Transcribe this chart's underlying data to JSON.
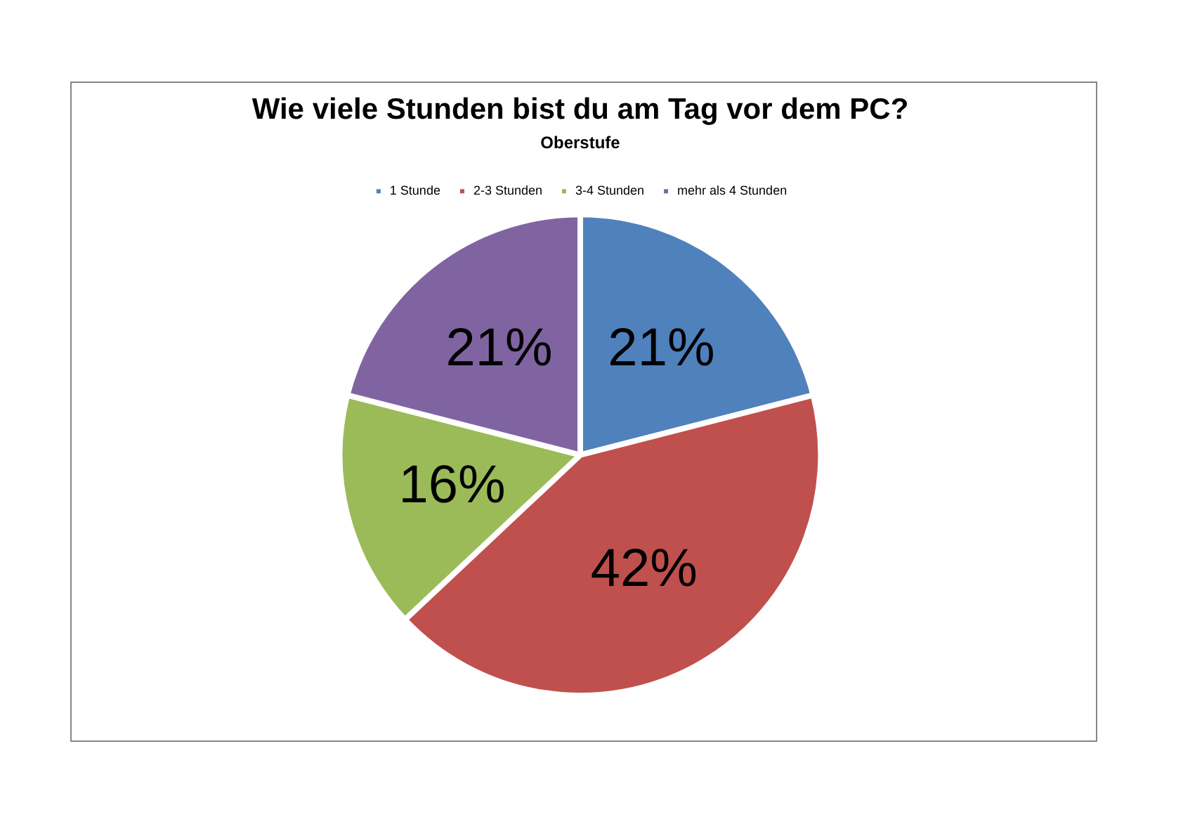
{
  "chart_data": {
    "type": "pie",
    "title": "Wie viele Stunden bist du am Tag vor dem PC?",
    "subtitle": "Oberstufe",
    "categories": [
      "1 Stunde",
      "2-3 Stunden",
      "3-4 Stunden",
      "mehr als 4 Stunden"
    ],
    "values": [
      21,
      42,
      16,
      21
    ],
    "colors": [
      "#4f81bd",
      "#c0504d",
      "#9bbb59",
      "#8064a2"
    ],
    "value_labels": [
      "21%",
      "42%",
      "16%",
      "21%"
    ],
    "legend": "top"
  }
}
